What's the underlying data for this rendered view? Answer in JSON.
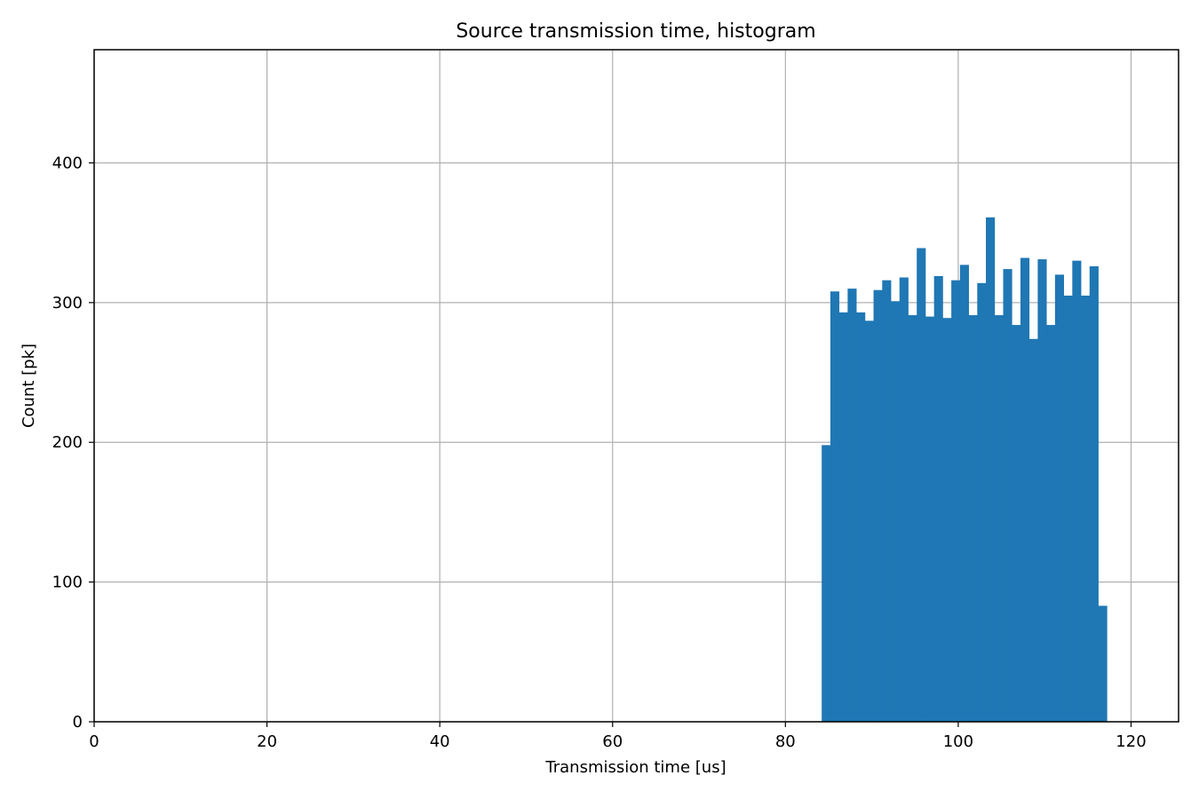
{
  "chart_data": {
    "type": "bar",
    "title": "Source transmission time, histogram",
    "xlabel": "Transmission time [us]",
    "ylabel": "Count [pk]",
    "xlim": [
      0,
      125.5
    ],
    "ylim": [
      0,
      481
    ],
    "xticks": [
      0,
      20,
      40,
      60,
      80,
      100,
      120
    ],
    "yticks": [
      0,
      100,
      200,
      300,
      400
    ],
    "grid": true,
    "color": "#1f77b4",
    "bin_width": 1.0,
    "bins": [
      {
        "x": 84.2,
        "count": 198
      },
      {
        "x": 85.2,
        "count": 308
      },
      {
        "x": 86.2,
        "count": 293
      },
      {
        "x": 87.2,
        "count": 310
      },
      {
        "x": 88.2,
        "count": 293
      },
      {
        "x": 89.2,
        "count": 287
      },
      {
        "x": 90.2,
        "count": 309
      },
      {
        "x": 91.2,
        "count": 316
      },
      {
        "x": 92.2,
        "count": 301
      },
      {
        "x": 93.2,
        "count": 318
      },
      {
        "x": 94.2,
        "count": 291
      },
      {
        "x": 95.2,
        "count": 339
      },
      {
        "x": 96.2,
        "count": 290
      },
      {
        "x": 97.2,
        "count": 319
      },
      {
        "x": 98.2,
        "count": 289
      },
      {
        "x": 99.2,
        "count": 316
      },
      {
        "x": 100.2,
        "count": 327
      },
      {
        "x": 101.2,
        "count": 291
      },
      {
        "x": 102.2,
        "count": 314
      },
      {
        "x": 103.2,
        "count": 361
      },
      {
        "x": 104.2,
        "count": 291
      },
      {
        "x": 105.2,
        "count": 324
      },
      {
        "x": 106.2,
        "count": 284
      },
      {
        "x": 107.2,
        "count": 332
      },
      {
        "x": 108.2,
        "count": 274
      },
      {
        "x": 109.2,
        "count": 331
      },
      {
        "x": 110.2,
        "count": 284
      },
      {
        "x": 111.2,
        "count": 320
      },
      {
        "x": 112.2,
        "count": 305
      },
      {
        "x": 113.2,
        "count": 330
      },
      {
        "x": 114.2,
        "count": 305
      },
      {
        "x": 115.2,
        "count": 326
      },
      {
        "x": 116.2,
        "count": 83
      }
    ]
  }
}
